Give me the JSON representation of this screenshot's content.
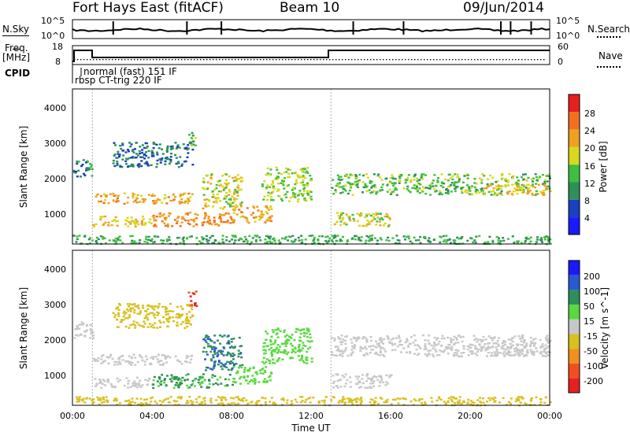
{
  "header": {
    "station": "Fort Hays East (fitACF)",
    "beam": "Beam 10",
    "date": "09/Jun/2014"
  },
  "strips": {
    "nsky_label": "N.Sky",
    "nsearch_label": "N.Search",
    "noise_ticks": [
      "10^5",
      "10^0"
    ],
    "freq_label_line1": "Freq.",
    "freq_label_line2": "[MHz]",
    "freq_ticks": [
      "18",
      "8"
    ],
    "nave_label": "Nave",
    "nave_ticks": [
      "60",
      "0"
    ],
    "cpid_label": "CPID",
    "cpid_modes": [
      "normal (fast) 151 IF",
      "rbsp CT-trig 220 IF"
    ]
  },
  "colors": {
    "power_scale": [
      "#1a1aff",
      "#1a3fbf",
      "#2f8f5a",
      "#3fbf3f",
      "#d8d820",
      "#f0a020",
      "#f07020",
      "#e62020"
    ],
    "velocity_scale": [
      "#1a1aff",
      "#2a5ad0",
      "#2f8f5a",
      "#5ad840",
      "#c8c8c8",
      "#d8c020",
      "#f09020",
      "#f05020",
      "#e62020"
    ],
    "gray": "#c8c8c8"
  },
  "chart_data": [
    {
      "type": "heatmap",
      "title": "",
      "xlabel": "",
      "ylabel": "Slant Range [km]",
      "xlim": [
        "00:00",
        "24:00"
      ],
      "ylim": [
        180,
        4600
      ],
      "yticks": [
        "1000",
        "2000",
        "3000",
        "4000"
      ],
      "colorbar": {
        "label": "Power [dB]",
        "ticks": [
          "4",
          "8",
          "12",
          "16",
          "20",
          "24",
          "28"
        ],
        "range": [
          0,
          30
        ]
      },
      "cpid_change_hours": [
        1.0,
        13.0
      ],
      "echo_bands": [
        {
          "t0": 1.0,
          "t1": 6.0,
          "r0": 1350,
          "r1": 1650,
          "level": 22
        },
        {
          "t0": 1.0,
          "t1": 4.0,
          "r0": 700,
          "r1": 1000,
          "level": 20
        },
        {
          "t0": 4.0,
          "t1": 8.0,
          "r0": 700,
          "r1": 1100,
          "level": 24
        },
        {
          "t0": 8.0,
          "t1": 10.0,
          "r0": 800,
          "r1": 1300,
          "level": 22
        },
        {
          "t0": 6.5,
          "t1": 8.5,
          "r0": 1200,
          "r1": 2200,
          "level": 18
        },
        {
          "t0": 9.5,
          "t1": 12.0,
          "r0": 1400,
          "r1": 2400,
          "level": 16
        },
        {
          "t0": 13.0,
          "t1": 16.0,
          "r0": 700,
          "r1": 1100,
          "level": 18
        },
        {
          "t0": 13.0,
          "t1": 24.0,
          "r0": 1600,
          "r1": 2200,
          "level": 14
        },
        {
          "t0": 20.5,
          "t1": 24.0,
          "r0": 1600,
          "r1": 1900,
          "level": 20
        },
        {
          "t0": 5.8,
          "t1": 6.2,
          "r0": 3000,
          "r1": 3500,
          "level": 14
        },
        {
          "t0": 0.0,
          "t1": 1.0,
          "r0": 2100,
          "r1": 2600,
          "level": 10
        },
        {
          "t0": 2.0,
          "t1": 6.0,
          "r0": 2400,
          "r1": 3100,
          "level": 8
        },
        {
          "t0": 0.0,
          "t1": 24.0,
          "r0": 200,
          "r1": 450,
          "level": 12
        }
      ]
    },
    {
      "type": "heatmap",
      "title": "",
      "xlabel": "Time UT",
      "ylabel": "Slant Range [km]",
      "xlim": [
        "00:00",
        "24:00"
      ],
      "ylim": [
        180,
        4600
      ],
      "xticks": [
        "00:00",
        "04:00",
        "08:00",
        "12:00",
        "16:00",
        "20:00",
        "00:00"
      ],
      "yticks": [
        "1000",
        "2000",
        "3000",
        "4000"
      ],
      "colorbar": {
        "label": "Velocity [m s^-1]",
        "ticks": [
          "200",
          "100",
          "50",
          "15",
          "-15",
          "-50",
          "-100",
          "-200"
        ],
        "range": [
          -250,
          250
        ]
      },
      "cpid_change_hours": [
        1.0,
        13.0
      ],
      "echo_bands": [
        {
          "t0": 1.0,
          "t1": 6.0,
          "r0": 1350,
          "r1": 1650,
          "level": 0
        },
        {
          "t0": 1.0,
          "t1": 4.0,
          "r0": 700,
          "r1": 1000,
          "level": 0
        },
        {
          "t0": 4.0,
          "t1": 8.0,
          "r0": 700,
          "r1": 1100,
          "level": 60
        },
        {
          "t0": 8.0,
          "t1": 10.0,
          "r0": 800,
          "r1": 1300,
          "level": 40
        },
        {
          "t0": 6.5,
          "t1": 8.5,
          "r0": 1200,
          "r1": 2200,
          "level": 90
        },
        {
          "t0": 9.5,
          "t1": 12.0,
          "r0": 1400,
          "r1": 2400,
          "level": 30
        },
        {
          "t0": 13.0,
          "t1": 16.0,
          "r0": 700,
          "r1": 1100,
          "level": 0
        },
        {
          "t0": 13.0,
          "t1": 24.0,
          "r0": 1600,
          "r1": 2200,
          "level": 0
        },
        {
          "t0": 20.5,
          "t1": 24.0,
          "r0": 1600,
          "r1": 1900,
          "level": 0
        },
        {
          "t0": 5.8,
          "t1": 6.2,
          "r0": 3000,
          "r1": 3500,
          "level": -220
        },
        {
          "t0": 0.0,
          "t1": 1.0,
          "r0": 2100,
          "r1": 2600,
          "level": 0
        },
        {
          "t0": 2.0,
          "t1": 6.0,
          "r0": 2400,
          "r1": 3100,
          "level": -30
        },
        {
          "t0": 0.0,
          "t1": 24.0,
          "r0": 200,
          "r1": 450,
          "level": -40
        }
      ]
    }
  ]
}
